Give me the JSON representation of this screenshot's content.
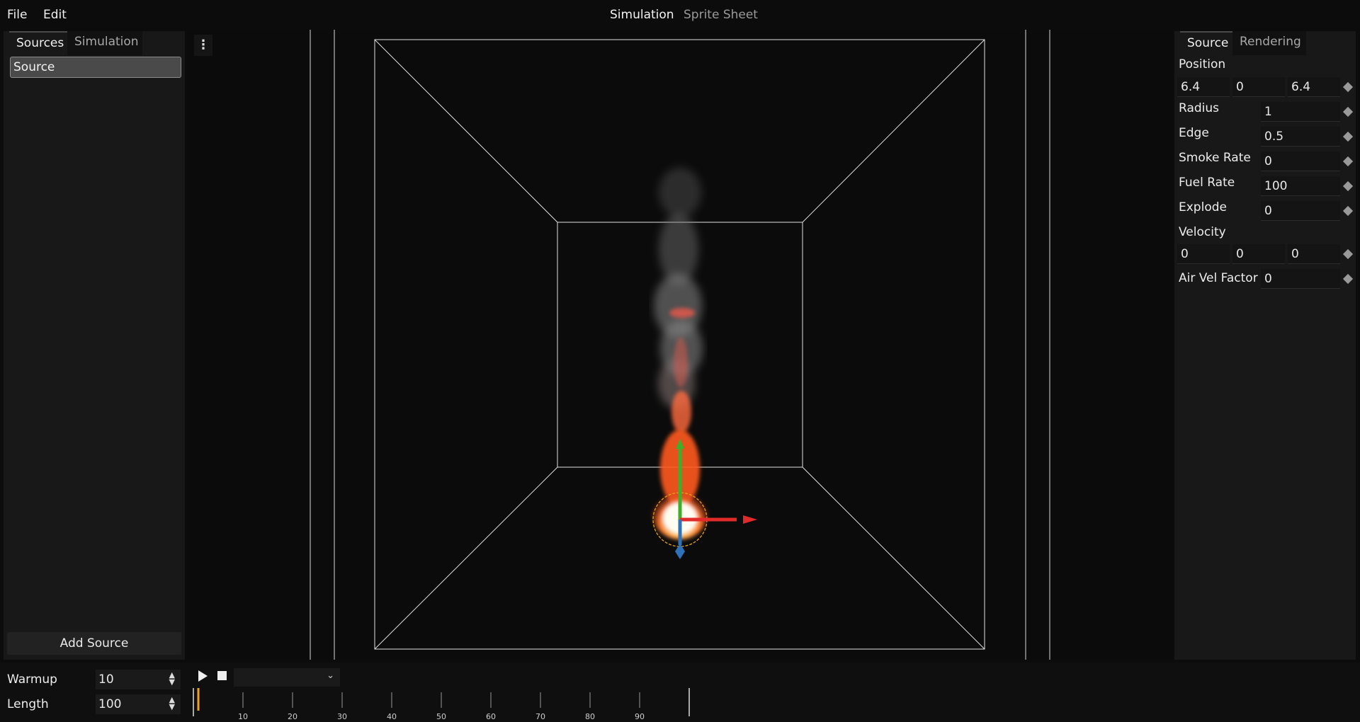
{
  "menu": {
    "file": "File",
    "edit": "Edit"
  },
  "modes": {
    "simulation": "Simulation",
    "sprite_sheet": "Sprite Sheet"
  },
  "left_panel": {
    "tabs": [
      "Sources",
      "Simulation"
    ],
    "items": [
      "Source"
    ],
    "add_button": "Add Source"
  },
  "right_panel": {
    "tabs": [
      "Source",
      "Rendering"
    ],
    "position_label": "Position",
    "position": [
      "6.4",
      "0",
      "6.4"
    ],
    "radius_label": "Radius",
    "radius": "1",
    "edge_label": "Edge",
    "edge": "0.5",
    "smoke_rate_label": "Smoke Rate",
    "smoke_rate": "0",
    "fuel_rate_label": "Fuel Rate",
    "fuel_rate": "100",
    "explode_label": "Explode",
    "explode": "0",
    "velocity_label": "Velocity",
    "velocity": [
      "0",
      "0",
      "0"
    ],
    "air_vel_label": "Air Vel Factor",
    "air_vel": "0"
  },
  "viewport": {
    "menu_icon": "⋮"
  },
  "bottom": {
    "warmup_label": "Warmup",
    "warmup": "10",
    "length_label": "Length",
    "length": "100",
    "timeline_ticks": [
      "10",
      "20",
      "30",
      "40",
      "50",
      "60",
      "70",
      "80",
      "90"
    ],
    "current_frame": 1,
    "total_frames": 100
  },
  "colors": {
    "gizmo_x": "#e12a2a",
    "gizmo_y": "#3fae2a",
    "gizmo_z": "#2f72b8",
    "playhead": "#f0a020",
    "radius_ring": "#e6a21a"
  },
  "icons": {
    "play": "play-icon",
    "stop": "stop-icon",
    "dropdown": "chevron-down-icon",
    "keyframe": "diamond-icon",
    "spinner": "up-down-arrows-icon",
    "menu": "kebab-menu-icon"
  }
}
